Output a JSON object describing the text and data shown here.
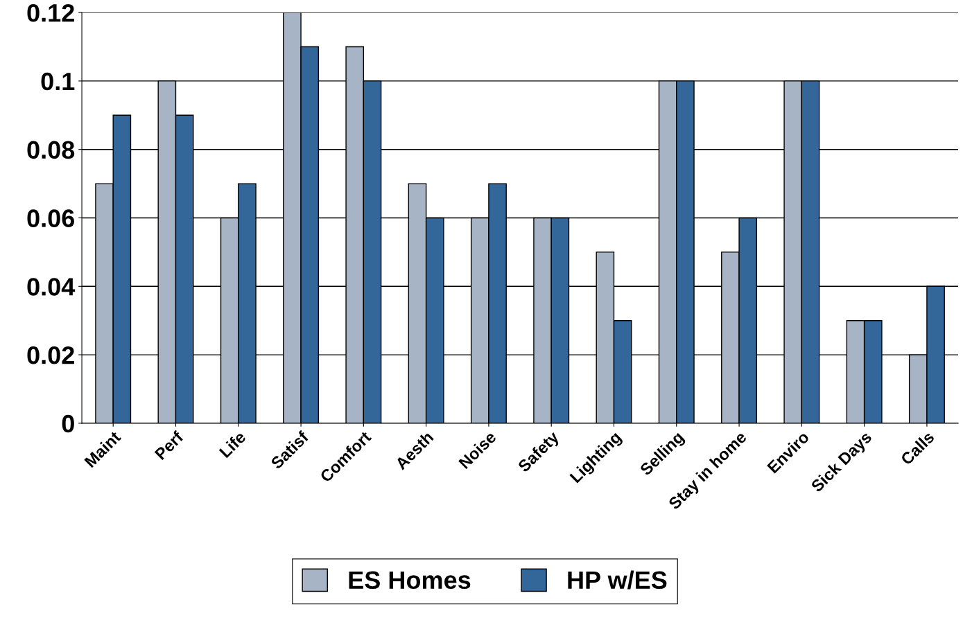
{
  "chart_data": {
    "type": "bar",
    "categories": [
      "Maint",
      "Perf",
      "Life",
      "Satisf",
      "Comfort",
      "Aesth",
      "Noise",
      "Safety",
      "Lighting",
      "Selling",
      "Stay in home",
      "Enviro",
      "Sick Days",
      "Calls"
    ],
    "series": [
      {
        "name": "ES Homes",
        "color": "#a6b4c6",
        "values": [
          0.07,
          0.1,
          0.06,
          0.12,
          0.11,
          0.07,
          0.06,
          0.06,
          0.05,
          0.1,
          0.05,
          0.1,
          0.03,
          0.02
        ]
      },
      {
        "name": "HP w/ES",
        "color": "#336699",
        "values": [
          0.09,
          0.09,
          0.07,
          0.11,
          0.1,
          0.06,
          0.07,
          0.06,
          0.03,
          0.1,
          0.06,
          0.1,
          0.03,
          0.04
        ]
      }
    ],
    "ylim": [
      0,
      0.12
    ],
    "yticks": [
      {
        "value": 0,
        "label": "0"
      },
      {
        "value": 0.02,
        "label": "0.02"
      },
      {
        "value": 0.04,
        "label": "0.04"
      },
      {
        "value": 0.06,
        "label": "0.06"
      },
      {
        "value": 0.08,
        "label": "0.08"
      },
      {
        "value": 0.1,
        "label": "0.1"
      },
      {
        "value": 0.12,
        "label": "0.12"
      }
    ],
    "grid": "y",
    "legend": "bottom"
  }
}
